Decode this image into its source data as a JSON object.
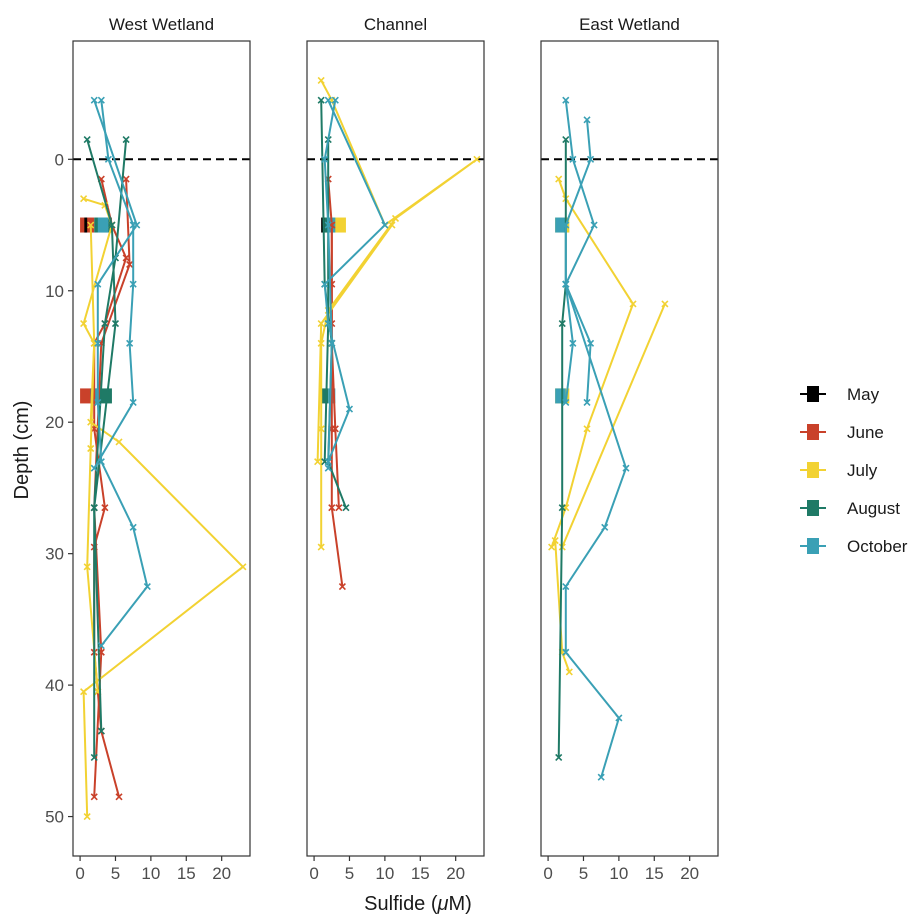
{
  "chart_data": {
    "type": "line",
    "xlabel_parts": [
      "Sulfide (",
      "μ",
      "M)"
    ],
    "ylabel": "Depth (cm)",
    "xlim": [
      -1,
      24
    ],
    "ylim": [
      53,
      -9
    ],
    "x_ticks": [
      0,
      5,
      10,
      15,
      20
    ],
    "y_ticks": [
      0,
      10,
      20,
      30,
      40,
      50
    ],
    "reference_line": {
      "y": 0,
      "style": "dashed"
    },
    "legend": {
      "placement": "right"
    },
    "series_names": [
      "May",
      "June",
      "July",
      "August",
      "October"
    ],
    "colors": {
      "May": "#000000",
      "June": "#c9412a",
      "July": "#f2d233",
      "August": "#1f7a66",
      "October": "#3aa0b5"
    },
    "panels": [
      {
        "title": "West Wetland",
        "series": [
          {
            "name": "June",
            "points": [
              [
                3,
                1.5
              ],
              [
                4.5,
                5
              ],
              [
                6.5,
                7.5
              ],
              [
                3.5,
                12.5
              ],
              [
                2,
                14
              ],
              [
                2,
                20.5
              ],
              [
                3.5,
                26.5
              ],
              [
                2,
                29.5
              ],
              [
                2,
                37.5
              ],
              [
                2.5,
                40.5
              ],
              [
                3,
                43.5
              ],
              [
                5.5,
                48.5
              ]
            ]
          },
          {
            "name": "June",
            "points": [
              [
                6.5,
                1.5
              ],
              [
                7,
                8
              ],
              [
                3,
                14
              ],
              [
                2,
                26.5
              ],
              [
                3,
                37.5
              ],
              [
                2,
                48.5
              ]
            ]
          },
          {
            "name": "July",
            "points": [
              [
                0.5,
                3
              ],
              [
                3.5,
                3.5
              ],
              [
                4.5,
                5
              ],
              [
                0.5,
                12.5
              ],
              [
                2,
                14
              ],
              [
                1.5,
                20
              ],
              [
                5.5,
                21.5
              ],
              [
                23,
                31
              ],
              [
                0.5,
                40.5
              ],
              [
                1,
                50
              ]
            ]
          },
          {
            "name": "July",
            "points": [
              [
                1.5,
                5
              ],
              [
                2,
                14
              ],
              [
                1.5,
                22
              ],
              [
                1,
                31
              ],
              [
                2.5,
                40.5
              ]
            ]
          },
          {
            "name": "August",
            "points": [
              [
                1,
                -1.5
              ],
              [
                4.5,
                5
              ],
              [
                5,
                12.5
              ],
              [
                2,
                26.5
              ],
              [
                2,
                45.5
              ]
            ]
          },
          {
            "name": "August",
            "points": [
              [
                6.5,
                -1.5
              ],
              [
                5,
                7.5
              ],
              [
                3.5,
                12.5
              ],
              [
                2,
                26.5
              ],
              [
                3,
                43.5
              ]
            ]
          },
          {
            "name": "October",
            "points": [
              [
                2,
                -4.5
              ],
              [
                8,
                5
              ],
              [
                2.5,
                9.5
              ],
              [
                2.5,
                14
              ],
              [
                2.5,
                18.5
              ],
              [
                3,
                23
              ],
              [
                7.5,
                28
              ],
              [
                9.5,
                32.5
              ],
              [
                3,
                37
              ]
            ]
          },
          {
            "name": "October",
            "points": [
              [
                3,
                -4.5
              ],
              [
                4,
                0
              ],
              [
                7.5,
                5
              ],
              [
                7.5,
                9.5
              ],
              [
                7,
                14
              ],
              [
                7.5,
                18.5
              ],
              [
                2,
                23.5
              ]
            ]
          }
        ],
        "bars": [
          {
            "y": 5,
            "segments": [
              {
                "name": "June",
                "x0": 0,
                "x1": 2
              },
              {
                "name": "May",
                "x0": 0.6,
                "x1": 1
              },
              {
                "name": "August",
                "x0": 2,
                "x1": 4.5
              },
              {
                "name": "October",
                "x0": 2.5,
                "x1": 4
              }
            ]
          },
          {
            "y": 18,
            "segments": [
              {
                "name": "June",
                "x0": 0,
                "x1": 1.5
              },
              {
                "name": "May",
                "x0": 1.5,
                "x1": 2
              },
              {
                "name": "August",
                "x0": 2,
                "x1": 4.5
              },
              {
                "name": "October",
                "x0": 1.5,
                "x1": 2.5
              }
            ]
          }
        ]
      },
      {
        "title": "Channel",
        "series": [
          {
            "name": "June",
            "points": [
              [
                2,
                1.5
              ],
              [
                2.5,
                5
              ],
              [
                2.5,
                9.5
              ],
              [
                2.5,
                12.5
              ],
              [
                2.5,
                14
              ],
              [
                2.5,
                20.5
              ],
              [
                2.5,
                26.5
              ],
              [
                4,
                32.5
              ]
            ]
          },
          {
            "name": "June",
            "points": [
              [
                2.5,
                5
              ],
              [
                2.5,
                14
              ],
              [
                3,
                20.5
              ],
              [
                3.5,
                26.5
              ]
            ]
          },
          {
            "name": "July",
            "points": [
              [
                1,
                -6
              ],
              [
                2.5,
                -4.5
              ],
              [
                10,
                5
              ],
              [
                23,
                0
              ],
              [
                11.5,
                4.5
              ],
              [
                2,
                11.5
              ],
              [
                1,
                14
              ],
              [
                1,
                20.5
              ],
              [
                1,
                29.5
              ]
            ]
          },
          {
            "name": "July",
            "points": [
              [
                11,
                5
              ],
              [
                1,
                12.5
              ],
              [
                0.5,
                23
              ]
            ]
          },
          {
            "name": "August",
            "points": [
              [
                1,
                -4.5
              ],
              [
                1.5,
                9.5
              ],
              [
                2.5,
                14
              ],
              [
                2,
                23
              ],
              [
                4.5,
                26.5
              ]
            ]
          },
          {
            "name": "August",
            "points": [
              [
                2,
                -1.5
              ],
              [
                2,
                12.5
              ],
              [
                1.5,
                23
              ]
            ]
          },
          {
            "name": "October",
            "points": [
              [
                3,
                -4.5
              ],
              [
                1.5,
                0
              ],
              [
                2,
                5
              ],
              [
                2.5,
                14
              ],
              [
                2,
                23.5
              ]
            ]
          },
          {
            "name": "October",
            "points": [
              [
                2,
                -4.5
              ],
              [
                10,
                5
              ],
              [
                1.5,
                9.5
              ],
              [
                2,
                12.5
              ],
              [
                5,
                19
              ],
              [
                2,
                23
              ]
            ]
          }
        ],
        "bars": [
          {
            "y": 5,
            "segments": [
              {
                "name": "July",
                "x0": 1.5,
                "x1": 4.5
              },
              {
                "name": "October",
                "x0": 1.5,
                "x1": 3
              },
              {
                "name": "August",
                "x0": 1.5,
                "x1": 2
              },
              {
                "name": "May",
                "x0": 1,
                "x1": 1.5
              }
            ]
          },
          {
            "y": 18,
            "segments": [
              {
                "name": "August",
                "x0": 1,
                "x1": 2
              },
              {
                "name": "October",
                "x0": 2,
                "x1": 3
              }
            ]
          }
        ]
      },
      {
        "title": "East Wetland",
        "series": [
          {
            "name": "July",
            "points": [
              [
                1.5,
                1.5
              ],
              [
                2.5,
                3
              ],
              [
                12,
                11
              ],
              [
                5.5,
                20.5
              ],
              [
                2.5,
                26.5
              ],
              [
                0.5,
                29.5
              ],
              [
                1,
                29
              ],
              [
                2,
                37.5
              ],
              [
                3,
                39
              ]
            ]
          },
          {
            "name": "July",
            "points": [
              [
                16.5,
                11
              ],
              [
                2,
                29.5
              ]
            ]
          },
          {
            "name": "August",
            "points": [
              [
                2.5,
                -1.5
              ],
              [
                2.5,
                9.5
              ],
              [
                2,
                12.5
              ],
              [
                2,
                26.5
              ],
              [
                1.5,
                45.5
              ]
            ]
          },
          {
            "name": "October",
            "points": [
              [
                2.5,
                -4.5
              ],
              [
                3.5,
                0
              ],
              [
                6.5,
                5
              ],
              [
                2.5,
                9.5
              ],
              [
                3.5,
                14
              ],
              [
                2.5,
                18.5
              ]
            ]
          },
          {
            "name": "October",
            "points": [
              [
                5.5,
                -3
              ],
              [
                6,
                0
              ],
              [
                2.5,
                5
              ],
              [
                2.5,
                9.5
              ],
              [
                6,
                14
              ],
              [
                5.5,
                18.5
              ]
            ]
          },
          {
            "name": "October",
            "points": [
              [
                2.5,
                9.5
              ],
              [
                11,
                23.5
              ],
              [
                8,
                28
              ],
              [
                2.5,
                32.5
              ],
              [
                2.5,
                37.5
              ],
              [
                10,
                42.5
              ],
              [
                7.5,
                47
              ]
            ]
          }
        ],
        "bars": [
          {
            "y": 5,
            "segments": [
              {
                "name": "July",
                "x0": 1,
                "x1": 3
              },
              {
                "name": "October",
                "x0": 1,
                "x1": 2.5
              }
            ]
          },
          {
            "y": 18,
            "segments": [
              {
                "name": "July",
                "x0": 1,
                "x1": 3
              },
              {
                "name": "October",
                "x0": 1,
                "x1": 2.5
              }
            ]
          }
        ]
      }
    ]
  }
}
